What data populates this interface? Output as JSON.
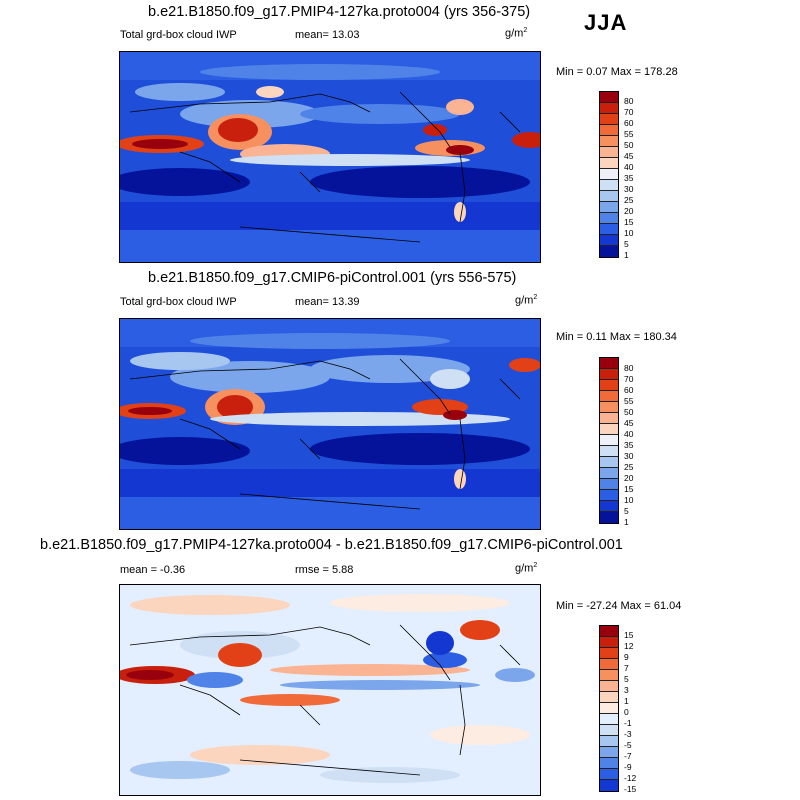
{
  "season_label": "JJA",
  "units": "g/m",
  "units_exp": "2",
  "panels": [
    {
      "title": "b.e21.B1850.f09_g17.PMIP4-127ka.proto004 (yrs 356-375)",
      "variable": "Total grd-box cloud IWP",
      "stat_mean": "mean=  13.03",
      "stat_rmse": "",
      "minmax": "Min =  0.07 Max = 178.28",
      "colorbar": {
        "levels": [
          "80",
          "70",
          "60",
          "55",
          "50",
          "45",
          "40",
          "35",
          "30",
          "25",
          "20",
          "15",
          "10",
          "5",
          "1"
        ],
        "colors": [
          "#99000d",
          "#c8200d",
          "#e24016",
          "#f06a3a",
          "#f6905f",
          "#fbb493",
          "#fcd5be",
          "#eef2f8",
          "#cfe0f5",
          "#a8c7f0",
          "#7ba6ec",
          "#4f83e8",
          "#2b5ee3",
          "#1437d2",
          "#04139a",
          "#010a5e"
        ]
      }
    },
    {
      "title": "b.e21.B1850.f09_g17.CMIP6-piControl.001 (yrs 556-575)",
      "variable": "Total grd-box cloud IWP",
      "stat_mean": "mean=  13.39",
      "stat_rmse": "",
      "minmax": "Min =  0.11 Max = 180.34",
      "colorbar": {
        "levels": [
          "80",
          "70",
          "60",
          "55",
          "50",
          "45",
          "40",
          "35",
          "30",
          "25",
          "20",
          "15",
          "10",
          "5",
          "1"
        ],
        "colors": [
          "#99000d",
          "#c8200d",
          "#e24016",
          "#f06a3a",
          "#f6905f",
          "#fbb493",
          "#fcd5be",
          "#eef2f8",
          "#cfe0f5",
          "#a8c7f0",
          "#7ba6ec",
          "#4f83e8",
          "#2b5ee3",
          "#1437d2",
          "#04139a",
          "#010a5e"
        ]
      }
    },
    {
      "title": "b.e21.B1850.f09_g17.PMIP4-127ka.proto004 - b.e21.B1850.f09_g17.CMIP6-piControl.001",
      "variable": "",
      "stat_mean": "mean =  -0.36",
      "stat_rmse": "rmse =   5.88",
      "minmax": "Min = -27.24 Max =  61.04",
      "colorbar": {
        "levels": [
          "15",
          "12",
          "9",
          "7",
          "5",
          "3",
          "1",
          "0",
          "-1",
          "-3",
          "-5",
          "-7",
          "-9",
          "-12",
          "-15"
        ],
        "colors": [
          "#99000d",
          "#c8200d",
          "#e24016",
          "#f06a3a",
          "#f6905f",
          "#fbb493",
          "#fcd5be",
          "#fdece2",
          "#e3efff",
          "#cfe0f5",
          "#a8c7f0",
          "#7ba6ec",
          "#4f83e8",
          "#2b5ee3",
          "#1437d2",
          "#010a5e"
        ]
      }
    }
  ],
  "chart_data": {
    "type": "heatmap",
    "field": "Total grd-box cloud IWP",
    "season": "JJA",
    "units": "g/m2",
    "maps": [
      {
        "case": "b.e21.B1850.f09_g17.PMIP4-127ka.proto004",
        "years": "356-375",
        "mean": 13.03,
        "min": 0.07,
        "max": 178.28
      },
      {
        "case": "b.e21.B1850.f09_g17.CMIP6-piControl.001",
        "years": "556-575",
        "mean": 13.39,
        "min": 0.11,
        "max": 180.34
      },
      {
        "case": "difference",
        "mean": -0.36,
        "rmse": 5.88,
        "min": -27.24,
        "max": 61.04
      }
    ],
    "contour_levels_abs": [
      1,
      5,
      10,
      15,
      20,
      25,
      30,
      35,
      40,
      45,
      50,
      55,
      60,
      70,
      80
    ],
    "contour_levels_diff": [
      -15,
      -12,
      -9,
      -7,
      -5,
      -3,
      -1,
      0,
      1,
      3,
      5,
      7,
      9,
      12,
      15
    ]
  }
}
